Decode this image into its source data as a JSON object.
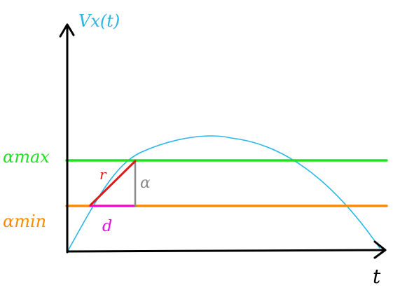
{
  "diagram": {
    "y_axis_label": "Vx(t)",
    "x_axis_label": "t",
    "alpha_max_label": "αmax",
    "alpha_min_label": "αmin",
    "hypotenuse_label": "r",
    "vertical_side_label": "α",
    "horizontal_side_label": "d"
  },
  "colors": {
    "axes": "#000000",
    "curve": "#29b6e8",
    "alpha_max_line": "#22e022",
    "alpha_min_line": "#ff8a00",
    "hypotenuse": "#e01818",
    "vertical_side": "#8a8a8a",
    "horizontal_side": "#ee00ee"
  }
}
